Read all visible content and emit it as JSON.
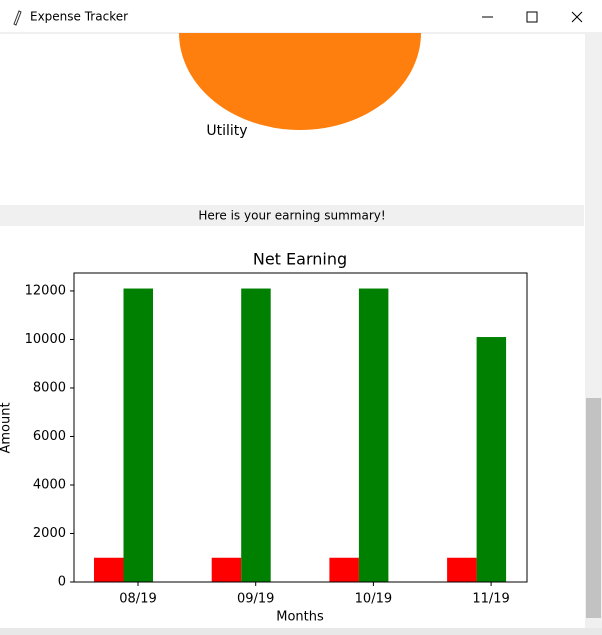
{
  "window": {
    "title": "Expense Tracker"
  },
  "pie_label": "Utility",
  "summary": "Here is your earning summary!",
  "chart_data": {
    "type": "bar",
    "title": "Net Earning",
    "x_label": "Months",
    "y_label": "Amount",
    "categories": [
      "08/19",
      "09/19",
      "10/19",
      "11/19"
    ],
    "series": [
      {
        "color": "#ff0000",
        "values": [
          1000,
          1000,
          1000,
          1000
        ]
      },
      {
        "color": "#008000",
        "values": [
          12100,
          12100,
          12100,
          10100
        ]
      }
    ],
    "ylim": [
      0,
      12740
    ],
    "yticks": [
      0,
      2000,
      4000,
      6000,
      8000,
      10000,
      12000
    ]
  }
}
